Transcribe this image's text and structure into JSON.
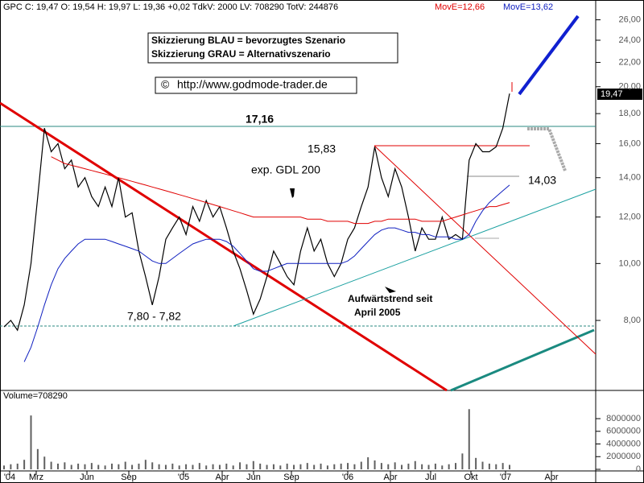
{
  "header": "GPC C: 19,47 O: 19,54 H: 19,97 L: 19,36 +0,02 TdkV: 2000 LV: 708290 TotV: 244876",
  "chart_data": [
    {
      "type": "line",
      "log_scale": true,
      "ylim": [
        6.08,
        28.1
      ],
      "yticks": [
        {
          "value": 8,
          "label": "8,00"
        },
        {
          "value": 10,
          "label": "10,00"
        },
        {
          "value": 12,
          "label": "12,00"
        },
        {
          "value": 14,
          "label": "14,00"
        },
        {
          "value": 16,
          "label": "16,00"
        },
        {
          "value": 18,
          "label": "18,00"
        },
        {
          "value": 20,
          "label": "20,00"
        },
        {
          "value": 22,
          "label": "22,00"
        },
        {
          "value": 24,
          "label": "24,00"
        },
        {
          "value": 26,
          "label": "26,00"
        }
      ],
      "x_tick_labels": [
        "'04",
        "Mrz",
        "Jun",
        "Sep",
        "'05",
        "Apr",
        "Jun",
        "Sep",
        "'06",
        "Apr",
        "Jul",
        "Okt",
        "'07",
        "Apr"
      ],
      "last_price_label": "19,47",
      "series": [
        {
          "color": "#000000",
          "values": [
            7.8,
            8.0,
            7.7,
            8.5,
            10,
            13,
            17,
            15.5,
            16,
            14.5,
            15,
            13.5,
            14,
            13,
            12.5,
            13.5,
            12.5,
            14,
            12,
            12.2,
            10.5,
            9.5,
            8.5,
            9.5,
            11,
            11.5,
            12,
            11.2,
            12.5,
            11.8,
            12.8,
            12,
            12.5,
            11.5,
            10.5,
            9.8,
            9,
            8.2,
            8.7,
            9.5,
            10.5,
            10,
            9.5,
            9.2,
            10.5,
            11.5,
            10.5,
            11,
            10,
            9.5,
            10,
            11,
            11.5,
            12.5,
            13.5,
            15.8,
            14,
            13,
            14.5,
            13.5,
            12,
            10.5,
            11.5,
            11,
            11,
            12,
            11,
            11.2,
            11,
            15,
            16,
            15.5,
            15.5,
            15.8,
            17,
            19.47
          ]
        },
        {
          "name": "MovE=12,66",
          "color": "#e00000",
          "values": [
            null,
            null,
            null,
            null,
            null,
            null,
            null,
            15.2,
            15,
            14.8,
            14.7,
            14.6,
            14.5,
            14.4,
            14.3,
            14.2,
            14.1,
            14,
            13.9,
            13.8,
            13.7,
            13.6,
            13.5,
            13.4,
            13.3,
            13.2,
            13.1,
            13,
            12.9,
            12.8,
            12.7,
            12.6,
            12.5,
            12.4,
            12.3,
            12.2,
            12.1,
            12.0,
            12.0,
            12.0,
            12.0,
            12.0,
            12.0,
            12.0,
            12.0,
            11.9,
            11.9,
            11.9,
            11.8,
            11.8,
            11.8,
            11.8,
            11.7,
            11.7,
            11.7,
            11.8,
            11.8,
            11.9,
            11.9,
            11.9,
            11.9,
            11.9,
            11.8,
            11.8,
            11.8,
            11.8,
            11.9,
            12,
            12.1,
            12.2,
            12.3,
            12.4,
            12.5,
            12.5,
            12.6,
            12.7
          ]
        },
        {
          "name": "MovE=13,62",
          "color": "#1020c0",
          "values": [
            null,
            null,
            null,
            6.8,
            7.2,
            7.8,
            8.5,
            9.2,
            9.8,
            10.2,
            10.5,
            10.8,
            11,
            11,
            11,
            11,
            10.9,
            10.8,
            10.7,
            10.6,
            10.5,
            10.3,
            10.1,
            10,
            10,
            10.2,
            10.4,
            10.6,
            10.8,
            10.9,
            11,
            11,
            11,
            10.9,
            10.7,
            10.4,
            10.1,
            9.8,
            9.7,
            9.7,
            9.8,
            9.9,
            10,
            10,
            10,
            10,
            10,
            10,
            10,
            10,
            10,
            10.1,
            10.3,
            10.6,
            10.9,
            11.2,
            11.4,
            11.5,
            11.5,
            11.4,
            11.3,
            11.3,
            11.2,
            11.2,
            11.1,
            11.1,
            11.1,
            11,
            11,
            11.2,
            11.8,
            12.3,
            12.7,
            13,
            13.3,
            13.6
          ]
        }
      ],
      "annotations": {
        "scenario_blue": "Skizzierung BLAU = bevorzugtes Szenario",
        "scenario_gray": "Skizzierung GRAU = Alternativszenario",
        "copyright": "©",
        "url": "http://www.godmode-trader.de",
        "resistance": "17,16",
        "high": "15,83",
        "gdl": "exp. GDL 200",
        "low_2006": "14,03",
        "trend_1": "Aufwärtstrend seit",
        "trend_2": "April 2005",
        "support": "7,80 - 7,82"
      }
    },
    {
      "type": "bar",
      "title": "Volume=708290",
      "color": "#606060",
      "ylim": [
        0,
        12200000
      ],
      "yticks": [
        0,
        2000000,
        4000000,
        6000000,
        8000000
      ],
      "values": [
        600000,
        800000,
        900000,
        1500000,
        8500000,
        3200000,
        2000000,
        1200000,
        900000,
        1100000,
        700000,
        900000,
        800000,
        1000000,
        700000,
        600000,
        900000,
        800000,
        1200000,
        700000,
        900000,
        1500000,
        1100000,
        800000,
        700000,
        900000,
        600000,
        800000,
        700000,
        1000000,
        600000,
        800000,
        700000,
        900000,
        600000,
        1100000,
        800000,
        1300000,
        900000,
        700000,
        800000,
        600000,
        900000,
        700000,
        800000,
        1000000,
        700000,
        900000,
        600000,
        800000,
        900000,
        1000000,
        800000,
        1200000,
        1900000,
        1400000,
        1000000,
        800000,
        1100000,
        700000,
        900000,
        1300000,
        800000,
        700000,
        900000,
        600000,
        800000,
        1000000,
        2500000,
        9500000,
        1800000,
        1200000,
        900000,
        800000,
        1000000,
        700000
      ]
    }
  ]
}
